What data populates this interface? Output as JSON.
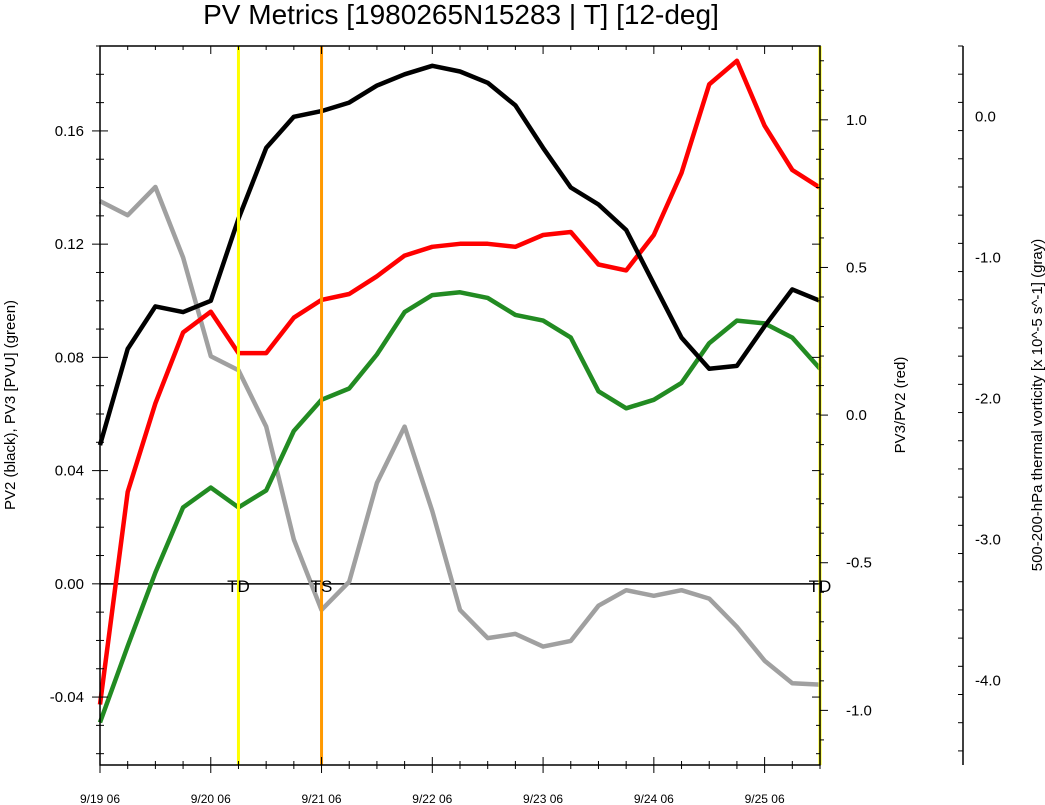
{
  "chart_data": {
    "type": "line",
    "title": "PV Metrics [1980265N15283 | T] [12-deg]",
    "x_ticks": [
      "9/19 06",
      "9/20 06",
      "9/21 06",
      "9/22 06",
      "9/23 06",
      "9/24 06",
      "9/25 06"
    ],
    "xlim": [
      0,
      6.5
    ],
    "left_axis": {
      "label": "PV2 (black), PV3 [PVU] (green)",
      "ylim": [
        -0.064,
        0.19
      ],
      "ticks": [
        "0.16",
        "0.12",
        "0.08",
        "0.04",
        "0.00",
        "-0.04"
      ],
      "tick_values": [
        0.16,
        0.12,
        0.08,
        0.04,
        0.0,
        -0.04
      ]
    },
    "right_axis": {
      "label": "PV3/PV2 (red)",
      "ylim": [
        -1.185,
        1.25
      ],
      "ticks": [
        "1.0",
        "0.5",
        "0.0",
        "-0.5",
        "-1.0"
      ],
      "tick_values": [
        1.0,
        0.5,
        0.0,
        -0.5,
        -1.0
      ]
    },
    "far_axis": {
      "label": "500-200-hPa thermal vorticity [x 10^-5 s^-1] (gray)",
      "ylim": [
        -4.6,
        0.5
      ],
      "ticks": [
        "0.0",
        "-1.0",
        "-2.0",
        "-3.0",
        "-4.0"
      ],
      "tick_values": [
        0.0,
        -1.0,
        -2.0,
        -3.0,
        -4.0
      ]
    },
    "x": [
      0,
      0.25,
      0.5,
      0.75,
      1.0,
      1.25,
      1.5,
      1.75,
      2.0,
      2.25,
      2.5,
      2.75,
      3.0,
      3.25,
      3.5,
      3.75,
      4.0,
      4.25,
      4.5,
      4.75,
      5.0,
      5.25,
      5.5,
      5.75,
      6.0,
      6.25,
      6.5
    ],
    "series": [
      {
        "name": "PV2",
        "axis": "left",
        "color": "#000000",
        "values": [
          0.049,
          0.083,
          0.098,
          0.096,
          0.1,
          0.129,
          0.154,
          0.165,
          0.167,
          0.17,
          0.176,
          0.18,
          0.183,
          0.181,
          0.177,
          0.169,
          0.154,
          0.14,
          0.134,
          0.125,
          0.106,
          0.087,
          0.076,
          0.077,
          0.091,
          0.104,
          0.1
        ]
      },
      {
        "name": "PV3",
        "axis": "left",
        "color": "#228b22",
        "values": [
          -0.049,
          -0.022,
          0.004,
          0.027,
          0.034,
          0.027,
          0.033,
          0.054,
          0.065,
          0.069,
          0.081,
          0.096,
          0.102,
          0.103,
          0.101,
          0.095,
          0.093,
          0.087,
          0.068,
          0.062,
          0.065,
          0.071,
          0.085,
          0.093,
          0.092,
          0.087,
          0.076
        ]
      },
      {
        "name": "PV3/PV2",
        "axis": "right",
        "color": "#ff0000",
        "values": [
          -0.98,
          -0.26,
          0.04,
          0.28,
          0.35,
          0.21,
          0.21,
          0.33,
          0.39,
          0.41,
          0.47,
          0.54,
          0.57,
          0.58,
          0.58,
          0.57,
          0.61,
          0.62,
          0.51,
          0.49,
          0.61,
          0.82,
          1.12,
          1.2,
          0.98,
          0.83,
          0.77
        ]
      },
      {
        "name": "500-200-hPa thermal vorticity",
        "axis": "far",
        "color": "#a0a0a0",
        "values": [
          -0.6,
          -0.7,
          -0.5,
          -1.0,
          -1.7,
          -1.8,
          -2.2,
          -3.0,
          -3.5,
          -3.3,
          -2.6,
          -2.2,
          -2.8,
          -3.5,
          -3.7,
          -3.67,
          -3.76,
          -3.72,
          -3.47,
          -3.36,
          -3.4,
          -3.36,
          -3.42,
          -3.62,
          -3.86,
          -4.02,
          -4.03
        ]
      }
    ],
    "vlines": [
      {
        "x": 1.25,
        "color": "#ffff00"
      },
      {
        "x": 2.0,
        "color": "#ff9900"
      },
      {
        "x": 6.5,
        "color": "#ffff00"
      }
    ],
    "annotations": [
      {
        "text": "TD",
        "x": 1.25
      },
      {
        "text": "TS",
        "x": 2.0
      },
      {
        "text": "TD",
        "x": 6.5
      }
    ],
    "zero_line": true,
    "grid": false
  }
}
